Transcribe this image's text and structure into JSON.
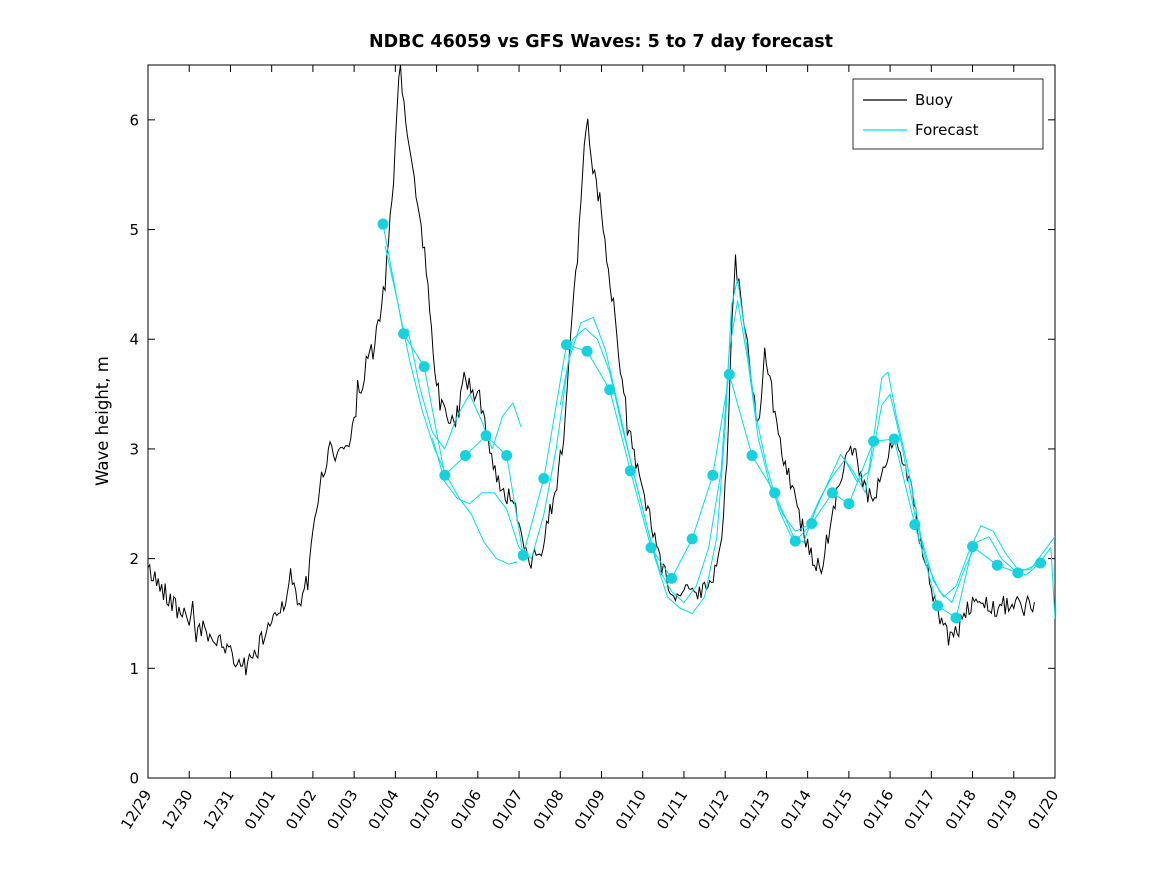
{
  "title": "NDBC 46059 vs GFS Waves: 5 to 7 day forecast",
  "legend": {
    "items": [
      {
        "label": "Buoy",
        "color": "#000000"
      },
      {
        "label": "Forecast",
        "color": "#00DFE8"
      }
    ]
  },
  "chart_data": {
    "type": "line",
    "title": "NDBC 46059 vs GFS Waves: 5 to 7 day forecast",
    "xlabel": "",
    "ylabel": "Wave height, m",
    "ylim": [
      0,
      6.5
    ],
    "yticks": [
      0,
      1,
      2,
      3,
      4,
      5,
      6
    ],
    "xtick_labels": [
      "12/29",
      "12/30",
      "12/31",
      "01/01",
      "01/02",
      "01/03",
      "01/04",
      "01/05",
      "01/06",
      "01/07",
      "01/08",
      "01/09",
      "01/10",
      "01/11",
      "01/12",
      "01/13",
      "01/14",
      "01/15",
      "01/16",
      "01/17",
      "01/18",
      "01/19",
      "01/20"
    ],
    "x_range_days": [
      0,
      22
    ],
    "grid": false,
    "legend_position": "top-right",
    "noise_seed": 42,
    "series": [
      {
        "name": "Buoy",
        "type": "noisy-line",
        "color": "#000000",
        "width": 1,
        "noise_amp": 0.09,
        "points": [
          [
            0,
            1.9
          ],
          [
            0.3,
            1.75
          ],
          [
            0.6,
            1.6
          ],
          [
            0.9,
            1.5
          ],
          [
            1.2,
            1.4
          ],
          [
            1.5,
            1.3
          ],
          [
            1.8,
            1.2
          ],
          [
            2.1,
            1.08
          ],
          [
            2.4,
            1.02
          ],
          [
            2.7,
            1.2
          ],
          [
            3.0,
            1.45
          ],
          [
            3.3,
            1.6
          ],
          [
            3.45,
            1.85
          ],
          [
            3.65,
            1.55
          ],
          [
            3.85,
            1.8
          ],
          [
            4.0,
            2.2
          ],
          [
            4.2,
            2.7
          ],
          [
            4.4,
            3.0
          ],
          [
            4.65,
            2.95
          ],
          [
            4.9,
            3.1
          ],
          [
            5.1,
            3.5
          ],
          [
            5.35,
            3.8
          ],
          [
            5.55,
            4.1
          ],
          [
            5.75,
            4.5
          ],
          [
            5.95,
            5.4
          ],
          [
            6.1,
            6.5
          ],
          [
            6.25,
            6.0
          ],
          [
            6.4,
            5.6
          ],
          [
            6.55,
            5.2
          ],
          [
            6.7,
            4.8
          ],
          [
            6.85,
            4.2
          ],
          [
            7.0,
            3.6
          ],
          [
            7.2,
            3.3
          ],
          [
            7.45,
            3.25
          ],
          [
            7.65,
            3.7
          ],
          [
            7.85,
            3.55
          ],
          [
            8.05,
            3.45
          ],
          [
            8.3,
            3.0
          ],
          [
            8.55,
            2.65
          ],
          [
            8.85,
            2.5
          ],
          [
            9.1,
            2.2
          ],
          [
            9.3,
            1.98
          ],
          [
            9.5,
            2.05
          ],
          [
            9.7,
            2.35
          ],
          [
            9.9,
            2.65
          ],
          [
            10.1,
            3.2
          ],
          [
            10.3,
            4.2
          ],
          [
            10.5,
            5.2
          ],
          [
            10.65,
            6.1
          ],
          [
            10.8,
            5.5
          ],
          [
            10.95,
            5.3
          ],
          [
            11.1,
            4.8
          ],
          [
            11.3,
            4.3
          ],
          [
            11.5,
            3.6
          ],
          [
            11.75,
            3.0
          ],
          [
            11.95,
            2.7
          ],
          [
            12.15,
            2.4
          ],
          [
            12.35,
            2.05
          ],
          [
            12.55,
            1.8
          ],
          [
            12.8,
            1.65
          ],
          [
            13.1,
            1.7
          ],
          [
            13.4,
            1.72
          ],
          [
            13.7,
            1.8
          ],
          [
            13.9,
            2.1
          ],
          [
            14.05,
            3.0
          ],
          [
            14.15,
            4.0
          ],
          [
            14.25,
            4.7
          ],
          [
            14.4,
            4.3
          ],
          [
            14.55,
            3.9
          ],
          [
            14.7,
            3.4
          ],
          [
            14.85,
            3.3
          ],
          [
            14.95,
            3.9
          ],
          [
            15.1,
            3.6
          ],
          [
            15.3,
            3.05
          ],
          [
            15.5,
            2.85
          ],
          [
            15.7,
            2.5
          ],
          [
            15.95,
            2.2
          ],
          [
            16.15,
            2.0
          ],
          [
            16.3,
            1.9
          ],
          [
            16.5,
            2.2
          ],
          [
            16.7,
            2.6
          ],
          [
            16.9,
            2.9
          ],
          [
            17.05,
            3.05
          ],
          [
            17.2,
            2.9
          ],
          [
            17.4,
            2.6
          ],
          [
            17.6,
            2.55
          ],
          [
            17.8,
            2.8
          ],
          [
            18.0,
            3.05
          ],
          [
            18.2,
            3.0
          ],
          [
            18.4,
            2.8
          ],
          [
            18.6,
            2.45
          ],
          [
            18.8,
            2.05
          ],
          [
            19.0,
            1.75
          ],
          [
            19.2,
            1.45
          ],
          [
            19.4,
            1.28
          ],
          [
            19.6,
            1.32
          ],
          [
            19.8,
            1.48
          ],
          [
            20.0,
            1.58
          ],
          [
            20.3,
            1.6
          ],
          [
            20.6,
            1.55
          ],
          [
            20.9,
            1.6
          ],
          [
            21.2,
            1.55
          ],
          [
            21.5,
            1.6
          ]
        ]
      },
      {
        "name": "Forecast",
        "type": "line-markers",
        "color": "#00DFE8",
        "marker_color": "#16D2DF",
        "marker_radius": 5.5,
        "width": 1,
        "points": [
          [
            5.7,
            5.05
          ],
          [
            6.2,
            4.05
          ],
          [
            6.7,
            3.75
          ],
          [
            7.2,
            2.76
          ],
          [
            7.7,
            2.94
          ],
          [
            8.2,
            3.12
          ],
          [
            8.7,
            2.94
          ],
          [
            9.1,
            2.03
          ],
          [
            9.6,
            2.73
          ],
          [
            10.15,
            3.95
          ],
          [
            10.65,
            3.89
          ],
          [
            11.2,
            3.54
          ],
          [
            11.7,
            2.8
          ],
          [
            12.2,
            2.1
          ],
          [
            12.7,
            1.82
          ],
          [
            13.2,
            2.18
          ],
          [
            13.7,
            2.76
          ],
          [
            14.1,
            3.68
          ],
          [
            14.65,
            2.94
          ],
          [
            15.2,
            2.6
          ],
          [
            15.7,
            2.16
          ],
          [
            16.1,
            2.32
          ],
          [
            16.6,
            2.6
          ],
          [
            17.0,
            2.5
          ],
          [
            17.6,
            3.07
          ],
          [
            18.1,
            3.09
          ],
          [
            18.6,
            2.31
          ],
          [
            19.15,
            1.57
          ],
          [
            19.6,
            1.46
          ],
          [
            20.0,
            2.11
          ],
          [
            20.6,
            1.94
          ],
          [
            21.1,
            1.87
          ],
          [
            21.65,
            1.96
          ]
        ]
      },
      {
        "name": "Forecast run 2",
        "type": "line",
        "color": "#00DFE8",
        "width": 1,
        "points": [
          [
            5.75,
            4.85
          ],
          [
            6.05,
            4.35
          ],
          [
            6.35,
            3.8
          ],
          [
            6.65,
            3.35
          ],
          [
            6.95,
            3.0
          ],
          [
            7.25,
            2.75
          ],
          [
            7.55,
            2.55
          ],
          [
            7.85,
            2.4
          ],
          [
            8.15,
            2.15
          ],
          [
            8.45,
            2.0
          ],
          [
            8.75,
            1.95
          ],
          [
            8.95,
            1.97
          ]
        ]
      },
      {
        "name": "Forecast run 3",
        "type": "line",
        "color": "#00DFE8",
        "width": 1,
        "points": [
          [
            6.3,
            4.1
          ],
          [
            6.6,
            3.55
          ],
          [
            6.9,
            3.15
          ],
          [
            7.2,
            3.0
          ],
          [
            7.5,
            3.3
          ],
          [
            7.8,
            3.5
          ],
          [
            8.1,
            3.25
          ],
          [
            8.35,
            3.0
          ],
          [
            8.6,
            3.3
          ],
          [
            8.85,
            3.42
          ],
          [
            9.05,
            3.2
          ]
        ]
      },
      {
        "name": "Forecast run 4",
        "type": "line",
        "color": "#00DFE8",
        "width": 1,
        "points": [
          [
            6.9,
            3.1
          ],
          [
            7.2,
            2.7
          ],
          [
            7.5,
            2.55
          ],
          [
            7.8,
            2.5
          ],
          [
            8.1,
            2.6
          ],
          [
            8.4,
            2.6
          ],
          [
            8.7,
            2.45
          ],
          [
            9.0,
            2.1
          ],
          [
            9.3,
            2.0
          ],
          [
            9.6,
            2.4
          ],
          [
            9.9,
            3.0
          ],
          [
            10.2,
            3.8
          ],
          [
            10.5,
            4.15
          ],
          [
            10.8,
            4.2
          ],
          [
            11.1,
            3.9
          ],
          [
            11.4,
            3.4
          ],
          [
            11.7,
            2.9
          ],
          [
            12.0,
            2.45
          ],
          [
            12.3,
            2.0
          ],
          [
            12.6,
            1.65
          ],
          [
            12.9,
            1.55
          ],
          [
            13.2,
            1.5
          ],
          [
            13.5,
            1.65
          ],
          [
            13.8,
            2.2
          ],
          [
            14.0,
            3.2
          ],
          [
            14.15,
            4.3
          ],
          [
            14.3,
            4.55
          ],
          [
            14.5,
            4.0
          ],
          [
            14.75,
            3.3
          ],
          [
            15.0,
            2.85
          ],
          [
            15.3,
            2.45
          ],
          [
            15.6,
            2.2
          ],
          [
            15.9,
            2.15
          ],
          [
            16.2,
            2.45
          ],
          [
            16.5,
            2.7
          ],
          [
            16.8,
            2.95
          ],
          [
            17.1,
            2.8
          ],
          [
            17.4,
            2.6
          ],
          [
            17.6,
            3.1
          ],
          [
            17.8,
            3.65
          ],
          [
            17.95,
            3.7
          ],
          [
            18.15,
            3.3
          ],
          [
            18.45,
            2.8
          ],
          [
            18.75,
            2.2
          ],
          [
            19.05,
            1.8
          ],
          [
            19.3,
            1.65
          ],
          [
            19.6,
            1.75
          ],
          [
            19.9,
            2.05
          ],
          [
            20.2,
            2.3
          ],
          [
            20.5,
            2.25
          ],
          [
            20.8,
            2.05
          ],
          [
            21.1,
            1.9
          ],
          [
            21.4,
            1.9
          ],
          [
            21.7,
            2.05
          ],
          [
            22.0,
            2.2
          ]
        ]
      },
      {
        "name": "Forecast run 5",
        "type": "line",
        "color": "#00DFE8",
        "width": 1,
        "points": [
          [
            10.0,
            3.4
          ],
          [
            10.3,
            4.0
          ],
          [
            10.6,
            4.1
          ],
          [
            10.9,
            4.0
          ],
          [
            11.2,
            3.7
          ],
          [
            11.5,
            3.2
          ],
          [
            11.8,
            2.75
          ],
          [
            12.1,
            2.3
          ],
          [
            12.4,
            1.9
          ],
          [
            12.7,
            1.7
          ],
          [
            13.0,
            1.6
          ],
          [
            13.3,
            1.75
          ],
          [
            13.6,
            2.1
          ],
          [
            13.9,
            2.8
          ],
          [
            14.1,
            3.9
          ],
          [
            14.3,
            4.35
          ],
          [
            14.55,
            3.8
          ],
          [
            14.8,
            3.1
          ],
          [
            15.1,
            2.65
          ],
          [
            15.4,
            2.4
          ],
          [
            15.7,
            2.25
          ],
          [
            16.0,
            2.3
          ],
          [
            16.3,
            2.55
          ],
          [
            16.6,
            2.75
          ],
          [
            16.9,
            2.9
          ],
          [
            17.2,
            2.7
          ],
          [
            17.5,
            2.8
          ],
          [
            17.8,
            3.4
          ],
          [
            18.0,
            3.5
          ],
          [
            18.3,
            3.0
          ],
          [
            18.6,
            2.4
          ],
          [
            18.9,
            1.95
          ],
          [
            19.2,
            1.7
          ],
          [
            19.5,
            1.6
          ],
          [
            19.8,
            1.9
          ],
          [
            20.1,
            2.15
          ],
          [
            20.4,
            2.2
          ],
          [
            20.7,
            2.0
          ],
          [
            21.0,
            1.9
          ],
          [
            21.3,
            1.85
          ],
          [
            21.6,
            1.95
          ],
          [
            21.9,
            2.1
          ],
          [
            22.0,
            1.45
          ]
        ]
      }
    ]
  }
}
